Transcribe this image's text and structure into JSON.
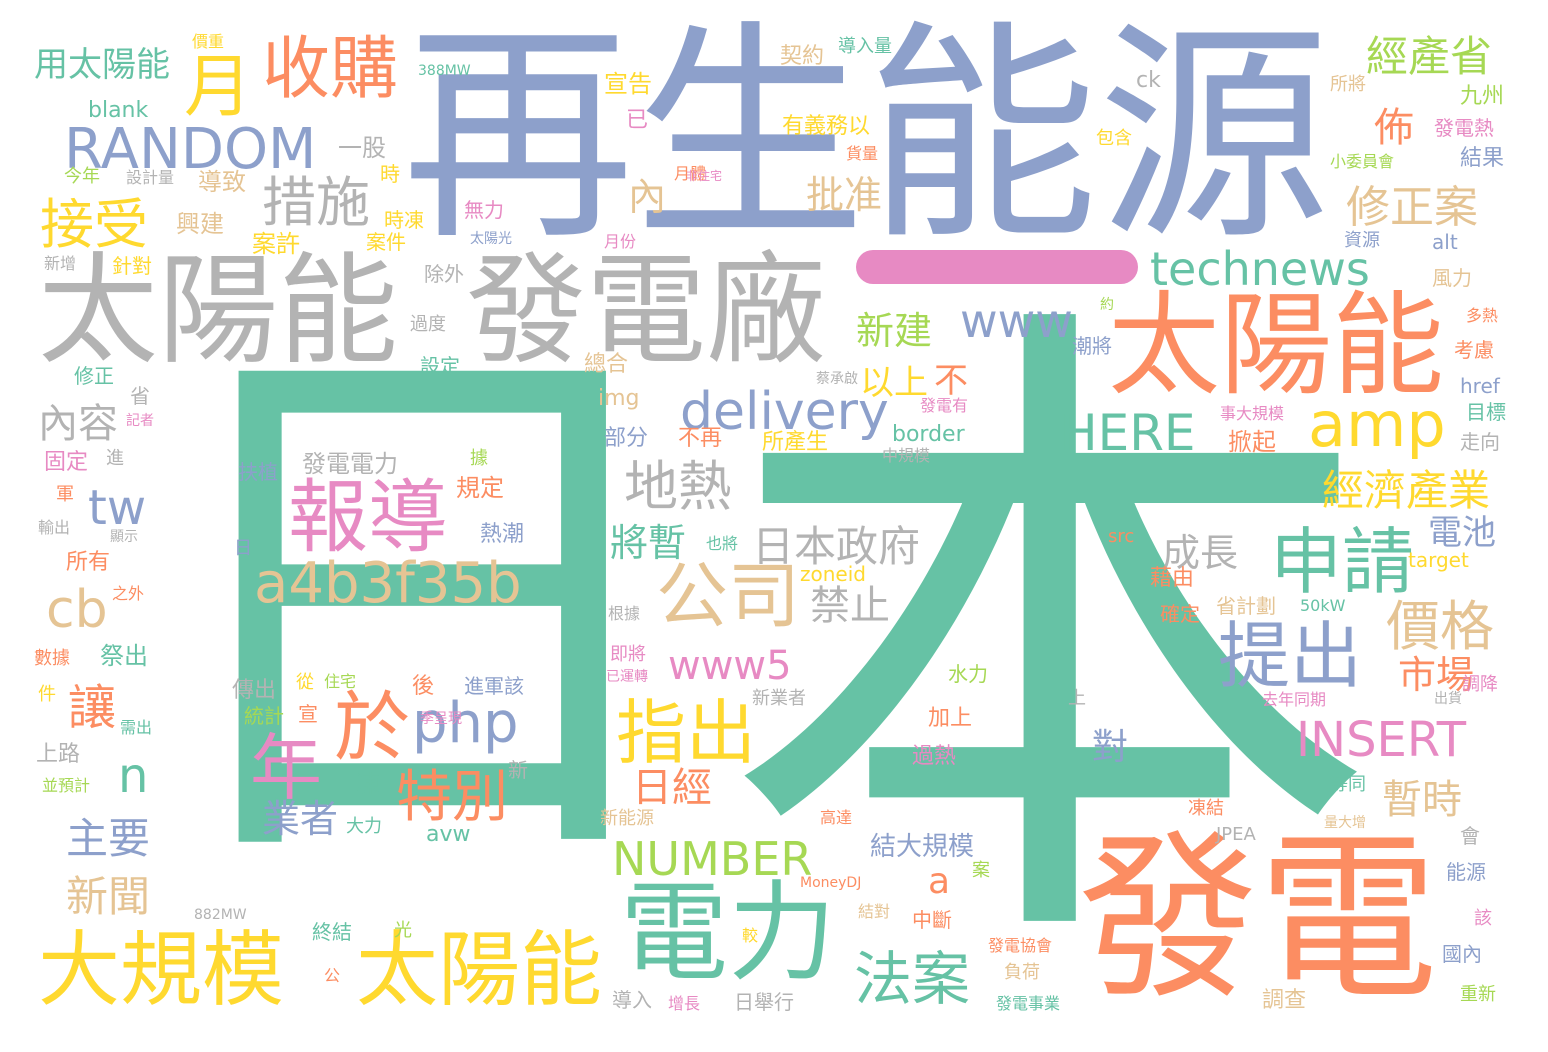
{
  "colors": {
    "teal": "#66c2a5",
    "orange": "#fc8d62",
    "blue": "#8da0cb",
    "pink": "#e78ac3",
    "lime": "#a6d854",
    "yellow": "#ffd92f",
    "tan": "#e5c494",
    "gray": "#b3b3b3"
  },
  "words": [
    {
      "text": "再生能源",
      "color": "blue"
    },
    {
      "text": "日",
      "color": "teal"
    },
    {
      "text": "本",
      "color": "teal"
    },
    {
      "text": "一",
      "color": "pink"
    },
    {
      "text": "太陽能",
      "color": "gray"
    },
    {
      "text": "發電廠",
      "color": "gray"
    },
    {
      "text": "發電",
      "color": "orange"
    },
    {
      "text": "太陽能",
      "color": "orange"
    },
    {
      "text": "大規模",
      "color": "yellow"
    },
    {
      "text": "太陽能",
      "color": "yellow"
    },
    {
      "text": "電力",
      "color": "teal"
    },
    {
      "text": "RANDOM",
      "color": "blue"
    },
    {
      "text": "收購",
      "color": "orange"
    },
    {
      "text": "月",
      "color": "yellow"
    },
    {
      "text": "報導",
      "color": "pink"
    },
    {
      "text": "a4b3f35b",
      "color": "tan"
    },
    {
      "text": "於",
      "color": "orange"
    },
    {
      "text": "php",
      "color": "blue"
    },
    {
      "text": "年",
      "color": "pink"
    },
    {
      "text": "特別",
      "color": "orange"
    },
    {
      "text": "申請",
      "color": "teal"
    },
    {
      "text": "公司",
      "color": "tan"
    },
    {
      "text": "提出",
      "color": "blue"
    },
    {
      "text": "指出",
      "color": "yellow"
    },
    {
      "text": "amp",
      "color": "yellow"
    },
    {
      "text": "technews",
      "color": "teal"
    },
    {
      "text": "delivery",
      "color": "blue"
    },
    {
      "text": "HERE",
      "color": "teal"
    },
    {
      "text": "www",
      "color": "blue"
    },
    {
      "text": "www5",
      "color": "pink"
    },
    {
      "text": "NUMBER",
      "color": "lime"
    },
    {
      "text": "INSERT",
      "color": "pink"
    },
    {
      "text": "法案",
      "color": "teal"
    },
    {
      "text": "措施",
      "color": "gray"
    },
    {
      "text": "接受",
      "color": "yellow"
    },
    {
      "text": "地熱",
      "color": "gray"
    },
    {
      "text": "經產省",
      "color": "lime"
    },
    {
      "text": "經濟產業",
      "color": "yellow"
    },
    {
      "text": "修正案",
      "color": "tan"
    },
    {
      "text": "價格",
      "color": "tan"
    },
    {
      "text": "日本政府",
      "color": "gray"
    },
    {
      "text": "cb",
      "color": "tan"
    },
    {
      "text": "tw",
      "color": "blue"
    },
    {
      "text": "n",
      "color": "teal"
    },
    {
      "text": "讓",
      "color": "orange"
    },
    {
      "text": "主要",
      "color": "blue"
    },
    {
      "text": "新聞",
      "color": "tan"
    },
    {
      "text": "內容",
      "color": "gray"
    },
    {
      "text": "批准",
      "color": "tan"
    },
    {
      "text": "新建",
      "color": "lime"
    },
    {
      "text": "以上",
      "color": "yellow"
    },
    {
      "text": "不",
      "color": "orange"
    },
    {
      "text": "佈",
      "color": "orange"
    },
    {
      "text": "內",
      "color": "tan"
    },
    {
      "text": "將暫",
      "color": "teal"
    },
    {
      "text": "成長",
      "color": "gray"
    },
    {
      "text": "禁止",
      "color": "gray"
    },
    {
      "text": "市場",
      "color": "orange"
    },
    {
      "text": "暫時",
      "color": "tan"
    },
    {
      "text": "電池",
      "color": "blue"
    },
    {
      "text": "日經",
      "color": "orange"
    },
    {
      "text": "對",
      "color": "blue"
    },
    {
      "text": "業者",
      "color": "blue"
    },
    {
      "text": "a",
      "color": "orange"
    },
    {
      "text": "結大規模",
      "color": "blue"
    },
    {
      "text": "用太陽能",
      "color": "teal"
    },
    {
      "text": "一股",
      "color": "gray"
    },
    {
      "text": "blank",
      "color": "teal"
    },
    {
      "text": "今年",
      "color": "lime"
    },
    {
      "text": "設計量",
      "color": "gray"
    },
    {
      "text": "導致",
      "color": "tan"
    },
    {
      "text": "時",
      "color": "yellow"
    },
    {
      "text": "興建",
      "color": "tan"
    },
    {
      "text": "時凍",
      "color": "yellow"
    },
    {
      "text": "案許",
      "color": "yellow"
    },
    {
      "text": "案件",
      "color": "yellow"
    },
    {
      "text": "新增",
      "color": "gray"
    },
    {
      "text": "針對",
      "color": "yellow"
    },
    {
      "text": "除外",
      "color": "gray"
    },
    {
      "text": "過度",
      "color": "gray"
    },
    {
      "text": "設定",
      "color": "teal"
    },
    {
      "text": "修正",
      "color": "teal"
    },
    {
      "text": "省",
      "color": "gray"
    },
    {
      "text": "記者",
      "color": "pink"
    },
    {
      "text": "固定",
      "color": "pink"
    },
    {
      "text": "進",
      "color": "gray"
    },
    {
      "text": "軍",
      "color": "orange"
    },
    {
      "text": "輸出",
      "color": "gray"
    },
    {
      "text": "顯示",
      "color": "gray"
    },
    {
      "text": "所有",
      "color": "orange"
    },
    {
      "text": "之外",
      "color": "orange"
    },
    {
      "text": "祭出",
      "color": "teal"
    },
    {
      "text": "數據",
      "color": "orange"
    },
    {
      "text": "件",
      "color": "yellow"
    },
    {
      "text": "需出",
      "color": "teal"
    },
    {
      "text": "上路",
      "color": "gray"
    },
    {
      "text": "並預計",
      "color": "lime"
    },
    {
      "text": "宣告",
      "color": "yellow"
    },
    {
      "text": "已",
      "color": "pink"
    },
    {
      "text": "契約",
      "color": "tan"
    },
    {
      "text": "導入量",
      "color": "teal"
    },
    {
      "text": "有義務以",
      "color": "yellow"
    },
    {
      "text": "貨量",
      "color": "orange"
    },
    {
      "text": "包含",
      "color": "yellow"
    },
    {
      "text": "月體",
      "color": "orange"
    },
    {
      "text": "非住宅",
      "color": "pink"
    },
    {
      "text": "無力",
      "color": "pink"
    },
    {
      "text": "太陽光",
      "color": "blue"
    },
    {
      "text": "月份",
      "color": "pink"
    },
    {
      "text": "約",
      "color": "lime"
    },
    {
      "text": "潮將",
      "color": "blue"
    },
    {
      "text": "總合",
      "color": "tan"
    },
    {
      "text": "img",
      "color": "tan"
    },
    {
      "text": "部分",
      "color": "blue"
    },
    {
      "text": "不再",
      "color": "orange"
    },
    {
      "text": "所產生",
      "color": "yellow"
    },
    {
      "text": "border",
      "color": "teal"
    },
    {
      "text": "中規模",
      "color": "gray"
    },
    {
      "text": "蔡承啟",
      "color": "gray"
    },
    {
      "text": "發電有",
      "color": "pink"
    },
    {
      "text": "事大規模",
      "color": "pink"
    },
    {
      "text": "掀起",
      "color": "orange"
    },
    {
      "text": "發電電力",
      "color": "gray"
    },
    {
      "text": "扶植",
      "color": "blue"
    },
    {
      "text": "據",
      "color": "lime"
    },
    {
      "text": "規定",
      "color": "orange"
    },
    {
      "text": "熱潮",
      "color": "blue"
    },
    {
      "text": "日",
      "color": "blue"
    },
    {
      "text": "也將",
      "color": "teal"
    },
    {
      "text": "src",
      "color": "orange"
    },
    {
      "text": "zoneid",
      "color": "yellow"
    },
    {
      "text": "根據",
      "color": "gray"
    },
    {
      "text": "即將",
      "color": "pink"
    },
    {
      "text": "已運轉",
      "color": "pink"
    },
    {
      "text": "傳出",
      "color": "gray"
    },
    {
      "text": "從",
      "color": "yellow"
    },
    {
      "text": "住宅",
      "color": "lime"
    },
    {
      "text": "進軍該",
      "color": "blue"
    },
    {
      "text": "後",
      "color": "orange"
    },
    {
      "text": "季呈現",
      "color": "pink"
    },
    {
      "text": "統計",
      "color": "lime"
    },
    {
      "text": "宣",
      "color": "orange"
    },
    {
      "text": "凍",
      "color": "teal"
    },
    {
      "text": "大力",
      "color": "teal"
    },
    {
      "text": "avw",
      "color": "teal"
    },
    {
      "text": "新",
      "color": "gray"
    },
    {
      "text": "水力",
      "color": "lime"
    },
    {
      "text": "新業者",
      "color": "gray"
    },
    {
      "text": "上",
      "color": "gray"
    },
    {
      "text": "加上",
      "color": "orange"
    },
    {
      "text": "過熱",
      "color": "pink"
    },
    {
      "text": "新能源",
      "color": "tan"
    },
    {
      "text": "高達",
      "color": "orange"
    },
    {
      "text": "凍結",
      "color": "orange"
    },
    {
      "text": "JPEA",
      "color": "gray"
    },
    {
      "text": "去年同期",
      "color": "pink"
    },
    {
      "text": "出貨",
      "color": "gray"
    },
    {
      "text": "量大增",
      "color": "tan"
    },
    {
      "text": "等同",
      "color": "teal"
    },
    {
      "text": "MoneyDJ",
      "color": "orange"
    },
    {
      "text": "882MW",
      "color": "gray"
    },
    {
      "text": "終結",
      "color": "teal"
    },
    {
      "text": "光",
      "color": "lime"
    },
    {
      "text": "公",
      "color": "orange"
    },
    {
      "text": "案",
      "color": "lime"
    },
    {
      "text": "結對",
      "color": "tan"
    },
    {
      "text": "中斷",
      "color": "orange"
    },
    {
      "text": "較",
      "color": "yellow"
    },
    {
      "text": "發電協會",
      "color": "orange"
    },
    {
      "text": "負荷",
      "color": "tan"
    },
    {
      "text": "發電事業",
      "color": "teal"
    },
    {
      "text": "導入",
      "color": "gray"
    },
    {
      "text": "增長",
      "color": "pink"
    },
    {
      "text": "日舉行",
      "color": "gray"
    },
    {
      "text": "調查",
      "color": "tan"
    },
    {
      "text": "國內",
      "color": "blue"
    },
    {
      "text": "重新",
      "color": "lime"
    },
    {
      "text": "該",
      "color": "pink"
    },
    {
      "text": "能源",
      "color": "blue"
    },
    {
      "text": "會",
      "color": "gray"
    },
    {
      "text": "九州",
      "color": "lime"
    },
    {
      "text": "發電熱",
      "color": "pink"
    },
    {
      "text": "結果",
      "color": "blue"
    },
    {
      "text": "小委員會",
      "color": "lime"
    },
    {
      "text": "資源",
      "color": "blue"
    },
    {
      "text": "alt",
      "color": "blue"
    },
    {
      "text": "風力",
      "color": "tan"
    },
    {
      "text": "多熱",
      "color": "orange"
    },
    {
      "text": "考慮",
      "color": "orange"
    },
    {
      "text": "href",
      "color": "blue"
    },
    {
      "text": "目標",
      "color": "teal"
    },
    {
      "text": "走向",
      "color": "gray"
    },
    {
      "text": "target",
      "color": "yellow"
    },
    {
      "text": "藉由",
      "color": "orange"
    },
    {
      "text": "確定",
      "color": "orange"
    },
    {
      "text": "省計劃",
      "color": "tan"
    },
    {
      "text": "50kW",
      "color": "teal"
    },
    {
      "text": "調降",
      "color": "pink"
    },
    {
      "text": "所將",
      "color": "tan"
    },
    {
      "text": "ck",
      "color": "gray"
    },
    {
      "text": "388MW",
      "color": "teal"
    },
    {
      "text": "價重",
      "color": "yellow"
    }
  ]
}
